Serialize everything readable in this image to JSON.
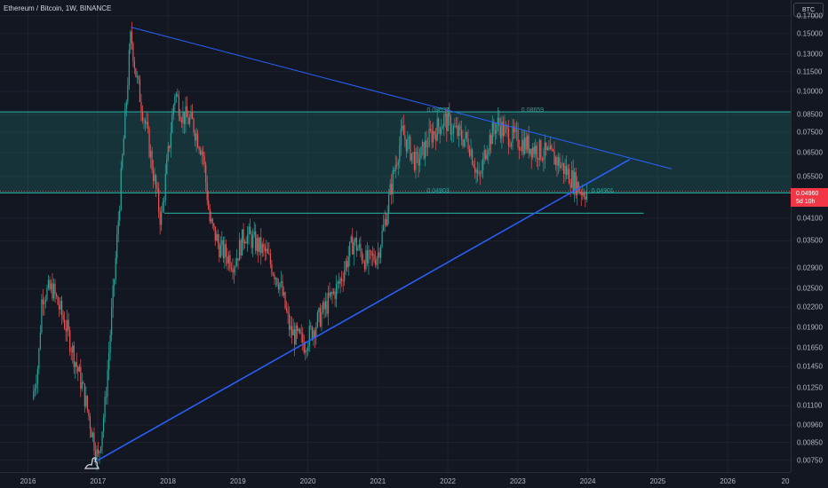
{
  "header": {
    "title": "Ethereum / Bitcoin, 1W, BINANCE"
  },
  "axis": {
    "currency": "BTC",
    "price_ticks": [
      "0.17000",
      "0.15000",
      "0.13000",
      "0.11500",
      "0.10000",
      "0.08500",
      "0.07500",
      "0.06500",
      "0.05500",
      "0.04100",
      "0.03500",
      "0.02900",
      "0.02500",
      "0.02200",
      "0.01900",
      "0.01650",
      "0.01450",
      "0.01250",
      "0.01100",
      "0.00960",
      "0.00850",
      "0.00750"
    ],
    "time_ticks": [
      "2016",
      "2017",
      "2018",
      "2019",
      "2020",
      "2021",
      "2022",
      "2023",
      "2024",
      "2025",
      "2026",
      "20"
    ]
  },
  "last_price": {
    "value": "0.04960",
    "countdown": "5d 10h"
  },
  "annotations": [
    "0.08657",
    "0.08659",
    "0.04903",
    "0.04901"
  ],
  "colors": {
    "up": "#26a69a",
    "down": "#ef5350",
    "trendline": "#2962ff",
    "zone": "#26a69a",
    "background": "#131722"
  },
  "chart_data": {
    "type": "candlestick",
    "symbol": "ETHBTC",
    "interval": "1W",
    "y_scale": "log",
    "ylim": [
      0.0069,
      0.19
    ],
    "xlim": [
      2015.6,
      2026.9
    ],
    "anchors": [
      [
        2015.6,
        0.003
      ],
      [
        2016.15,
        0.015
      ],
      [
        2016.2,
        0.024
      ],
      [
        2016.35,
        0.025
      ],
      [
        2016.55,
        0.019
      ],
      [
        2016.8,
        0.012
      ],
      [
        2017.0,
        0.0075
      ],
      [
        2017.1,
        0.011
      ],
      [
        2017.25,
        0.03
      ],
      [
        2017.4,
        0.09
      ],
      [
        2017.47,
        0.15
      ],
      [
        2017.55,
        0.11
      ],
      [
        2017.7,
        0.075
      ],
      [
        2017.9,
        0.04
      ],
      [
        2018.1,
        0.1
      ],
      [
        2018.2,
        0.085
      ],
      [
        2018.35,
        0.08
      ],
      [
        2018.5,
        0.065
      ],
      [
        2018.6,
        0.04
      ],
      [
        2018.75,
        0.033
      ],
      [
        2018.95,
        0.03
      ],
      [
        2019.1,
        0.037
      ],
      [
        2019.4,
        0.032
      ],
      [
        2019.6,
        0.026
      ],
      [
        2019.75,
        0.0185
      ],
      [
        2019.95,
        0.017
      ],
      [
        2020.2,
        0.021
      ],
      [
        2020.45,
        0.026
      ],
      [
        2020.65,
        0.035
      ],
      [
        2020.85,
        0.03
      ],
      [
        2021.0,
        0.032
      ],
      [
        2021.1,
        0.04
      ],
      [
        2021.25,
        0.06
      ],
      [
        2021.35,
        0.075
      ],
      [
        2021.55,
        0.06
      ],
      [
        2021.75,
        0.073
      ],
      [
        2021.95,
        0.082
      ],
      [
        2022.15,
        0.074
      ],
      [
        2022.3,
        0.07
      ],
      [
        2022.45,
        0.053
      ],
      [
        2022.55,
        0.068
      ],
      [
        2022.7,
        0.08
      ],
      [
        2022.85,
        0.074
      ],
      [
        2023.0,
        0.071
      ],
      [
        2023.3,
        0.066
      ],
      [
        2023.55,
        0.062
      ],
      [
        2023.75,
        0.055
      ],
      [
        2023.9,
        0.05
      ],
      [
        2024.0,
        0.0496
      ]
    ],
    "last_close": 0.0496,
    "countdown": "5d 10h",
    "zone": {
      "top": 0.0866,
      "bottom": 0.049
    },
    "zone_labels": [
      {
        "text": "0.08657",
        "x": 2021.7,
        "y": 0.0866
      },
      {
        "text": "0.08659",
        "x": 2023.05,
        "y": 0.0866
      },
      {
        "text": "0.04903",
        "x": 2021.7,
        "y": 0.049
      },
      {
        "text": "0.04901",
        "x": 2024.05,
        "y": 0.049
      }
    ],
    "support_line": {
      "y": 0.0425,
      "x_from": 2017.95,
      "x_to": 2024.8
    },
    "trendlines": [
      {
        "name": "descending-resistance",
        "from": [
          2017.47,
          0.157
        ],
        "to": [
          2025.2,
          0.058
        ],
        "width": 1
      },
      {
        "name": "ascending-support",
        "from": [
          2017.0,
          0.0075
        ],
        "to": [
          2024.6,
          0.062
        ],
        "width": 1.5
      }
    ]
  }
}
